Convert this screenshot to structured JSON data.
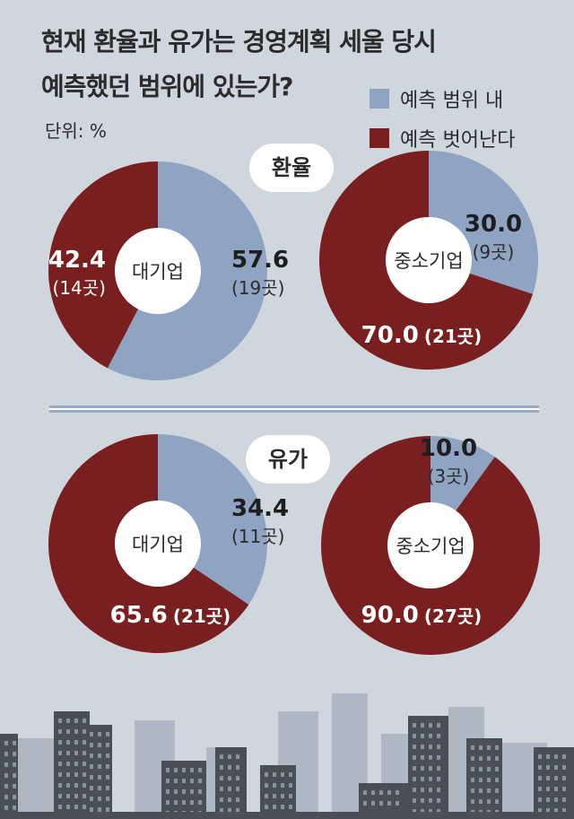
{
  "title_line1": "현재 환율과 유가는 경영계획 세울 당시",
  "title_line2": "예측했던 범위에 있는가?",
  "unit": "단위: %",
  "legend": [
    {
      "label": "예측 범위 내",
      "color": "#8fa3c3"
    },
    {
      "label": "예측 벗어난다",
      "color": "#7a1f1f"
    }
  ],
  "sections": {
    "exchange_rate": "환율",
    "oil_price": "유가"
  },
  "chart_data": [
    {
      "type": "pie",
      "section": "환율",
      "center_label": "대기업",
      "slices": [
        {
          "name": "예측 범위 내",
          "value": 57.6,
          "count": "19곳"
        },
        {
          "name": "예측 벗어난다",
          "value": 42.4,
          "count": "14곳"
        }
      ]
    },
    {
      "type": "pie",
      "section": "환율",
      "center_label": "중소기업",
      "slices": [
        {
          "name": "예측 범위 내",
          "value": 30.0,
          "count": "9곳"
        },
        {
          "name": "예측 벗어난다",
          "value": 70.0,
          "count": "21곳"
        }
      ]
    },
    {
      "type": "pie",
      "section": "유가",
      "center_label": "대기업",
      "slices": [
        {
          "name": "예측 범위 내",
          "value": 34.4,
          "count": "11곳"
        },
        {
          "name": "예측 벗어난다",
          "value": 65.6,
          "count": "21곳"
        }
      ]
    },
    {
      "type": "pie",
      "section": "유가",
      "center_label": "중소기업",
      "slices": [
        {
          "name": "예측 범위 내",
          "value": 10.0,
          "count": "3곳"
        },
        {
          "name": "예측 벗어난다",
          "value": 90.0,
          "count": "27곳"
        }
      ]
    }
  ]
}
